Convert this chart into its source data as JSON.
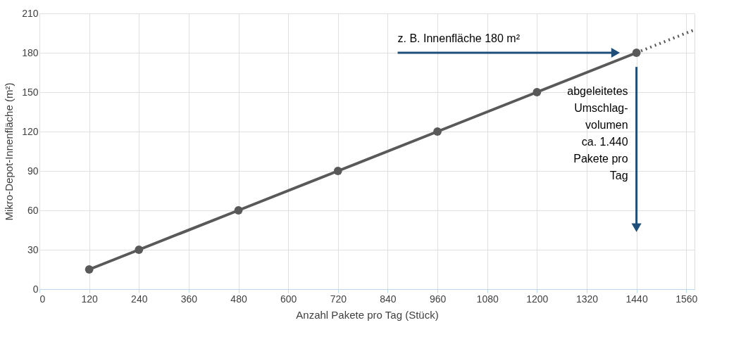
{
  "chart_data": {
    "type": "line",
    "xlabel": "Anzahl Pakete pro Tag (Stück)",
    "ylabel": "Mikro-Depot-Innenfläche (m²)",
    "series": [
      {
        "color": "#595959",
        "x": [
          120,
          240,
          480,
          720,
          960,
          1200,
          1440
        ],
        "values": [
          15,
          30,
          60,
          90,
          120,
          150,
          180
        ],
        "marker": "circle",
        "line_style": "solid"
      },
      {
        "color": "#595959",
        "x": [
          1440,
          1580
        ],
        "values": [
          180,
          197.5
        ],
        "marker": "none",
        "line_style": "dotted"
      }
    ],
    "xlim": [
      0,
      1580
    ],
    "xticks": [
      0,
      120,
      240,
      360,
      480,
      600,
      720,
      840,
      960,
      1080,
      1200,
      1320,
      1440,
      1560
    ],
    "ylim": [
      0,
      210
    ],
    "yticks": [
      0,
      30,
      60,
      90,
      120,
      150,
      180,
      210
    ],
    "grid": true,
    "annotations": [
      "z. B. Innenfläche 180 m²",
      "abgeleitetes\nUmschlag-\nvolumen\nca. 1.440\nPakete pro\nTag"
    ]
  }
}
